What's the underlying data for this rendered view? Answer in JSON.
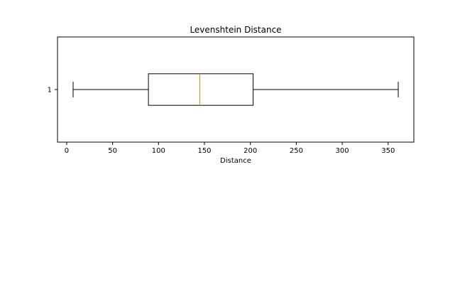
{
  "chart_data": {
    "type": "boxplot",
    "orientation": "horizontal",
    "title": "Levenshtein Distance",
    "xlabel": "Distance",
    "ylabel": "",
    "xlim": [
      -10,
      378
    ],
    "xticks": [
      0,
      50,
      100,
      150,
      200,
      250,
      300,
      350
    ],
    "categories": [
      "1"
    ],
    "boxes": [
      {
        "category": "1",
        "whisker_low": 7,
        "q1": 89,
        "median": 145,
        "q3": 203,
        "whisker_high": 361
      }
    ],
    "grid": false,
    "colors": {
      "box": "#000000",
      "median": "#ff7f0e",
      "whisker": "#000000"
    }
  }
}
